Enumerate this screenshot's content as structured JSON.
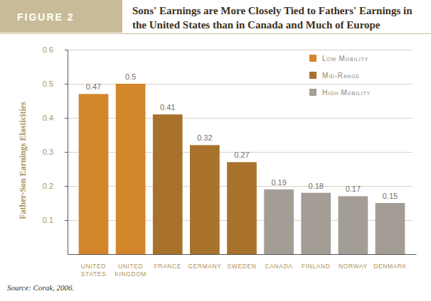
{
  "chart_data": {
    "type": "bar",
    "title": "Sons' Earnings are More Closely Tied to Fathers' Earnings in the United States than in Canada and Much of Europe",
    "annotations": [
      "FIGURE 2",
      "Source: Corak, 2006."
    ],
    "ylabel": "Father-Son Earnings Elasticities",
    "categories": [
      "UNITED STATES",
      "UNITED KINGDOM",
      "FRANCE",
      "GERMANY",
      "SWEDEN",
      "CANADA",
      "FINLAND",
      "NORWAY",
      "DENMARK"
    ],
    "series": [
      {
        "name": "Low Mobility",
        "color": "#d4862a",
        "values": [
          0.47,
          0.5,
          null,
          null,
          null,
          null,
          null,
          null,
          null
        ]
      },
      {
        "name": "Mid-Range",
        "color": "#a8722c",
        "values": [
          null,
          null,
          0.41,
          0.32,
          0.27,
          null,
          null,
          null,
          null
        ]
      },
      {
        "name": "High Mobility",
        "color": "#a39d95",
        "values": [
          null,
          null,
          null,
          null,
          null,
          0.19,
          0.18,
          0.17,
          0.15
        ]
      }
    ],
    "ylim": [
      0,
      0.6
    ],
    "yticks": [
      0.1,
      0.2,
      0.3,
      0.4,
      0.5,
      0.6
    ],
    "grid": true,
    "legend": "top-right",
    "stacked": true,
    "data_labels": true
  }
}
